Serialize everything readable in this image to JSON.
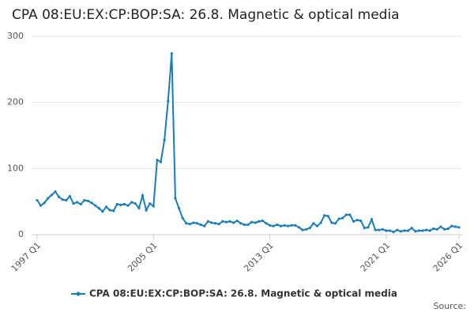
{
  "chart_data": {
    "type": "line",
    "title": "CPA 08:EU:EX:CP:BOP:SA: 26.8. Magnetic & optical media",
    "source": "Source:",
    "categories": [
      "1997 Q1",
      null,
      null,
      null,
      null,
      null,
      null,
      null,
      null,
      null,
      null,
      null,
      null,
      null,
      null,
      null,
      null,
      null,
      null,
      null,
      null,
      null,
      null,
      null,
      null,
      null,
      null,
      null,
      null,
      null,
      null,
      null,
      "2005 Q1",
      null,
      null,
      null,
      null,
      null,
      null,
      null,
      null,
      null,
      null,
      null,
      null,
      null,
      null,
      null,
      null,
      null,
      null,
      null,
      null,
      null,
      null,
      null,
      null,
      null,
      null,
      null,
      null,
      null,
      null,
      null,
      "2013 Q1",
      null,
      null,
      null,
      null,
      null,
      null,
      null,
      null,
      null,
      null,
      null,
      null,
      null,
      null,
      null,
      null,
      null,
      null,
      null,
      null,
      null,
      null,
      null,
      null,
      null,
      null,
      null,
      null,
      null,
      null,
      null,
      "2021 Q1",
      null,
      null,
      null,
      null,
      null,
      null,
      null,
      null,
      null,
      null,
      null,
      null,
      null,
      null,
      null,
      null,
      null,
      null,
      null,
      "2026 Q1"
    ],
    "series": [
      {
        "name": "CPA 08:EU:EX:CP:BOP:SA: 26.8. Magnetic & optical media",
        "color": "#1b7db5",
        "values": [
          52,
          44,
          48,
          55,
          60,
          65,
          57,
          53,
          52,
          58,
          47,
          49,
          46,
          52,
          51,
          48,
          44,
          40,
          35,
          42,
          37,
          36,
          46,
          45,
          46,
          44,
          49,
          47,
          40,
          59,
          37,
          47,
          43,
          113,
          110,
          143,
          202,
          274,
          55,
          40,
          25,
          17,
          16,
          18,
          17,
          15,
          13,
          20,
          18,
          17,
          16,
          20,
          19,
          20,
          18,
          21,
          17,
          15,
          15,
          19,
          18,
          20,
          21,
          17,
          14,
          13,
          15,
          13,
          14,
          13,
          14,
          14,
          11,
          7,
          8,
          10,
          17,
          13,
          18,
          29,
          28,
          18,
          17,
          24,
          25,
          30,
          30,
          20,
          22,
          21,
          10,
          11,
          23,
          7,
          7,
          8,
          6,
          6,
          4,
          7,
          5,
          6,
          6,
          10,
          5,
          6,
          6,
          7,
          6,
          9,
          8,
          12,
          8,
          9,
          13,
          12,
          11
        ]
      }
    ],
    "ylim": [
      0,
      300
    ],
    "yticks": [
      0,
      100,
      200,
      300
    ],
    "grid": true
  }
}
